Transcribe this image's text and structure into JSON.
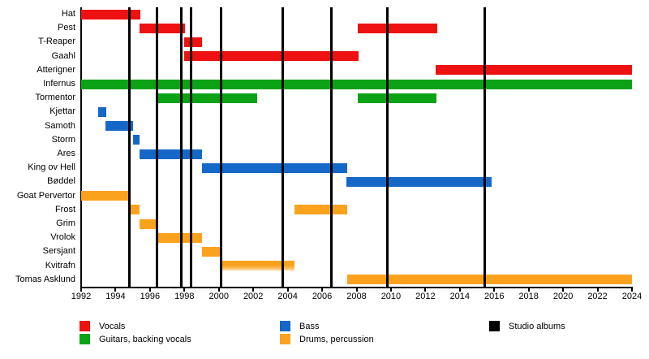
{
  "chart_data": {
    "type": "bar",
    "subtype": "gantt-timeline",
    "description": "Band members timeline (horizontal Gantt bars by role) with vertical lines marking studio albums",
    "x_axis": {
      "min": 1992,
      "max": 2024,
      "tick_step": 2,
      "tick_labels": [
        "1992",
        "1994",
        "1996",
        "1998",
        "2000",
        "2002",
        "2004",
        "2006",
        "2008",
        "2010",
        "2012",
        "2014",
        "2016",
        "2018",
        "2020",
        "2022",
        "2024"
      ]
    },
    "colors": {
      "vocals": "#ee1111",
      "guitars": "#0ba315",
      "bass": "#1568c8",
      "drums": "#faa21e",
      "drums_fade": "#fcd9a0",
      "albums": "#000000"
    },
    "rows": [
      {
        "label": "Hat",
        "role": "vocals",
        "segments": [
          {
            "start": 1992.0,
            "end": 1995.45
          }
        ]
      },
      {
        "label": "Pest",
        "role": "vocals",
        "segments": [
          {
            "start": 1995.4,
            "end": 1998.05
          },
          {
            "start": 2008.05,
            "end": 2012.7
          }
        ]
      },
      {
        "label": "T-Reaper",
        "role": "vocals",
        "segments": [
          {
            "start": 1998.0,
            "end": 1999.0
          }
        ]
      },
      {
        "label": "Gaahl",
        "role": "vocals",
        "segments": [
          {
            "start": 1998.0,
            "end": 2008.1
          }
        ]
      },
      {
        "label": "Atterigner",
        "role": "vocals",
        "segments": [
          {
            "start": 2012.6,
            "end": 2024.0
          }
        ]
      },
      {
        "label": "Infernus",
        "role": "guitars",
        "segments": [
          {
            "start": 1992.0,
            "end": 2024.0
          }
        ]
      },
      {
        "label": "Tormentor",
        "role": "guitars",
        "segments": [
          {
            "start": 1996.5,
            "end": 2002.25
          },
          {
            "start": 2008.05,
            "end": 2012.65
          }
        ]
      },
      {
        "label": "Kjettar",
        "role": "bass",
        "segments": [
          {
            "start": 1993.0,
            "end": 1993.45
          }
        ]
      },
      {
        "label": "Samoth",
        "role": "bass",
        "segments": [
          {
            "start": 1993.4,
            "end": 1995.0
          }
        ]
      },
      {
        "label": "Storm",
        "role": "bass",
        "segments": [
          {
            "start": 1995.0,
            "end": 1995.4
          }
        ]
      },
      {
        "label": "Ares",
        "role": "bass",
        "segments": [
          {
            "start": 1995.4,
            "end": 1999.0
          }
        ]
      },
      {
        "label": "King ov Hell",
        "role": "bass",
        "segments": [
          {
            "start": 1999.0,
            "end": 2007.45
          }
        ]
      },
      {
        "label": "Bøddel",
        "role": "bass",
        "segments": [
          {
            "start": 2007.4,
            "end": 2015.85
          }
        ]
      },
      {
        "label": "Goat Pervertor",
        "role": "drums",
        "segments": [
          {
            "start": 1992.0,
            "end": 1994.85
          }
        ]
      },
      {
        "label": "Frost",
        "role": "drums",
        "segments": [
          {
            "start": 1994.85,
            "end": 1995.4
          },
          {
            "start": 2004.4,
            "end": 2007.45
          }
        ]
      },
      {
        "label": "Grim",
        "role": "drums",
        "segments": [
          {
            "start": 1995.4,
            "end": 1996.4
          }
        ]
      },
      {
        "label": "Vrolok",
        "role": "drums",
        "segments": [
          {
            "start": 1996.4,
            "end": 1999.0
          }
        ]
      },
      {
        "label": "Sersjant",
        "role": "drums",
        "segments": [
          {
            "start": 1999.0,
            "end": 2000.15
          }
        ]
      },
      {
        "label": "Kvitrafn",
        "role": "drums",
        "segments": [
          {
            "start": 2000.05,
            "end": 2004.4,
            "fade": true
          }
        ]
      },
      {
        "label": "Tomas Asklund",
        "role": "drums",
        "segments": [
          {
            "start": 2007.45,
            "end": 2024.0
          }
        ]
      }
    ],
    "album_lines": [
      1994.8,
      1996.4,
      1997.8,
      1998.4,
      2000.15,
      2003.7,
      2006.55,
      2009.8,
      2015.45
    ],
    "legend": [
      {
        "label": "Vocals",
        "color_key": "vocals"
      },
      {
        "label": "Guitars, backing vocals",
        "color_key": "guitars"
      },
      {
        "label": "Bass",
        "color_key": "bass"
      },
      {
        "label": "Drums, percussion",
        "color_key": "drums"
      },
      {
        "label": "Studio albums",
        "color_key": "albums"
      }
    ]
  }
}
